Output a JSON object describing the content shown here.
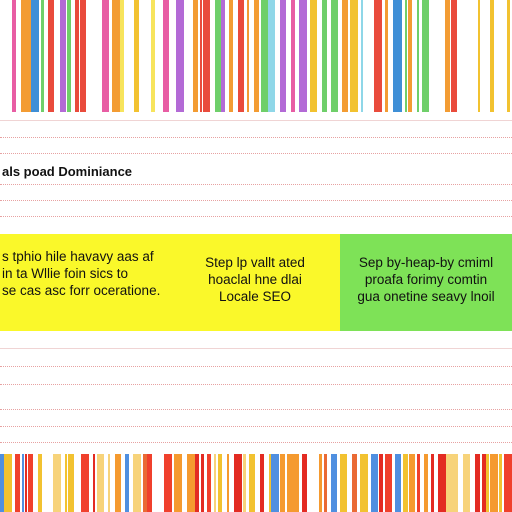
{
  "heading": "als poad Dominiance",
  "panels": [
    {
      "color": "#faf82a",
      "lines": [
        "s tphio hile havavy aas af",
        "in ta Wllie foin sics to",
        "se cas asc forr oceratione."
      ]
    },
    {
      "color": "#faf82a",
      "lines": [
        "Step lp vallt ated",
        "hoaclal hne dlai",
        "Locale SEO"
      ]
    },
    {
      "color": "#7ee257",
      "lines": [
        "Sep by-heap-by cmiml",
        "proafa forimy comtin",
        "gua onetine seavy lnoil"
      ]
    }
  ],
  "palette": {
    "top": [
      "#f2c230",
      "#e94b3c",
      "#f39c33",
      "#6fcf6a",
      "#8fd7e8",
      "#e85da4",
      "#f7e45c",
      "#3f8fd6",
      "#b36ad6"
    ],
    "bottom": [
      "#f0402c",
      "#f59a2f",
      "#f2c230",
      "#e32b22",
      "#4f8fe0",
      "#f7d37a",
      "#ea6a34"
    ]
  }
}
